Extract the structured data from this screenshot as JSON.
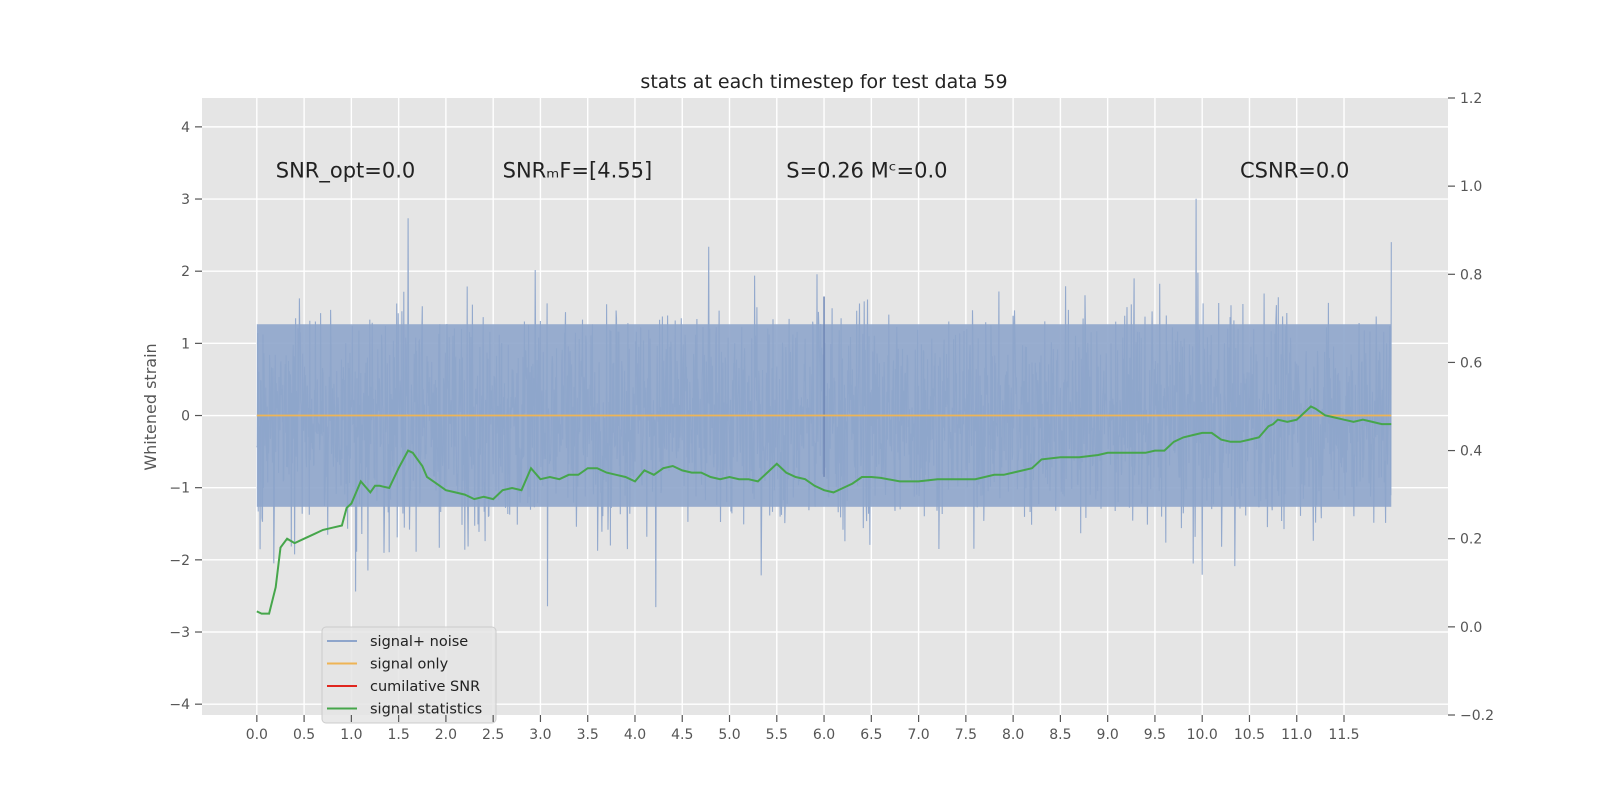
{
  "chart_data": {
    "type": "line",
    "title": "stats at each timestep for test data 59",
    "xlabel": "",
    "ylabel": "Whitened strain",
    "y2label": "",
    "xlim": [
      -0.58,
      12.6
    ],
    "ylim": [
      -4.15,
      4.4
    ],
    "y2lim": [
      -0.2,
      1.2
    ],
    "xticks": [
      "0.0",
      "0.5",
      "1.0",
      "1.5",
      "2.0",
      "2.5",
      "3.0",
      "3.5",
      "4.0",
      "4.5",
      "5.0",
      "5.5",
      "6.0",
      "6.5",
      "7.0",
      "7.5",
      "8.0",
      "8.5",
      "9.0",
      "9.5",
      "10.0",
      "10.5",
      "11.0",
      "11.5"
    ],
    "yticks": [
      "4",
      "3",
      "2",
      "1",
      "0",
      "−1",
      "−2",
      "−3",
      "−4"
    ],
    "y2ticks": [
      "1.2",
      "1.0",
      "0.8",
      "0.6",
      "0.4",
      "0.2",
      "0.0",
      "−0.2"
    ],
    "grid": true,
    "legend_position": "lower-left",
    "colors": {
      "background": "#e5e5e5",
      "noise": "#8ea5cb",
      "signal": "#eeb455",
      "cumulative": "#e0261e",
      "statistics": "#46a64b",
      "grid": "#ffffff"
    },
    "annotations": [
      {
        "id": "snr-opt",
        "text": "SNR_opt=0.0",
        "x": 0.2,
        "y": 3.3
      },
      {
        "id": "snr-mf",
        "text": "SNRₘF=[4.55]",
        "x": 2.6,
        "y": 3.3
      },
      {
        "id": "s-mc",
        "text": "S=0.26   Mᶜ=0.0",
        "x": 5.6,
        "y": 3.3
      },
      {
        "id": "csnr",
        "text": "CSNR=0.0",
        "x": 10.4,
        "y": 3.3
      }
    ],
    "series": [
      {
        "name": "signal+ noise",
        "axis": "left",
        "x_range": [
          0.0,
          12.0
        ],
        "envelope_upper_approx": 2.3,
        "envelope_lower_approx": -2.3,
        "spike_at": 6.0,
        "spike_range": [
          -0.85,
          1.65
        ]
      },
      {
        "name": "signal only",
        "axis": "left",
        "x": [
          0.0,
          12.0
        ],
        "values": [
          0.0,
          0.0
        ]
      },
      {
        "name": "cumilative SNR",
        "axis": "right",
        "x": [],
        "values": []
      },
      {
        "name": "signal statistics",
        "axis": "right",
        "x": [
          0.0,
          0.05,
          0.13,
          0.2,
          0.25,
          0.32,
          0.4,
          0.5,
          0.6,
          0.7,
          0.8,
          0.9,
          0.95,
          1.0,
          1.1,
          1.2,
          1.25,
          1.3,
          1.4,
          1.5,
          1.6,
          1.65,
          1.7,
          1.75,
          1.8,
          1.9,
          2.0,
          2.1,
          2.2,
          2.3,
          2.4,
          2.5,
          2.6,
          2.7,
          2.8,
          2.9,
          3.0,
          3.1,
          3.2,
          3.3,
          3.4,
          3.5,
          3.6,
          3.7,
          3.8,
          3.9,
          4.0,
          4.1,
          4.2,
          4.3,
          4.4,
          4.5,
          4.6,
          4.7,
          4.8,
          4.9,
          5.0,
          5.1,
          5.2,
          5.3,
          5.4,
          5.5,
          5.6,
          5.7,
          5.8,
          5.9,
          6.0,
          6.1,
          6.2,
          6.3,
          6.4,
          6.5,
          6.6,
          6.8,
          7.0,
          7.2,
          7.4,
          7.6,
          7.8,
          7.9,
          8.0,
          8.2,
          8.3,
          8.5,
          8.7,
          8.9,
          9.0,
          9.2,
          9.4,
          9.5,
          9.6,
          9.7,
          9.8,
          9.9,
          10.0,
          10.1,
          10.2,
          10.3,
          10.4,
          10.5,
          10.6,
          10.7,
          10.75,
          10.8,
          10.9,
          11.0,
          11.1,
          11.15,
          11.2,
          11.3,
          11.4,
          11.5,
          11.6,
          11.7,
          11.8,
          11.9,
          12.0
        ],
        "values": [
          0.035,
          0.03,
          0.03,
          0.09,
          0.18,
          0.2,
          0.19,
          0.2,
          0.21,
          0.22,
          0.225,
          0.23,
          0.27,
          0.28,
          0.33,
          0.305,
          0.32,
          0.32,
          0.315,
          0.36,
          0.4,
          0.395,
          0.38,
          0.365,
          0.34,
          0.325,
          0.31,
          0.305,
          0.3,
          0.29,
          0.295,
          0.29,
          0.31,
          0.315,
          0.31,
          0.36,
          0.335,
          0.34,
          0.335,
          0.345,
          0.345,
          0.36,
          0.36,
          0.35,
          0.345,
          0.34,
          0.33,
          0.355,
          0.345,
          0.36,
          0.365,
          0.355,
          0.35,
          0.35,
          0.34,
          0.335,
          0.34,
          0.335,
          0.335,
          0.33,
          0.35,
          0.37,
          0.35,
          0.34,
          0.335,
          0.32,
          0.31,
          0.305,
          0.315,
          0.325,
          0.34,
          0.34,
          0.338,
          0.33,
          0.33,
          0.335,
          0.335,
          0.335,
          0.345,
          0.345,
          0.35,
          0.36,
          0.38,
          0.385,
          0.385,
          0.39,
          0.395,
          0.395,
          0.395,
          0.4,
          0.4,
          0.42,
          0.43,
          0.435,
          0.44,
          0.44,
          0.425,
          0.42,
          0.42,
          0.425,
          0.43,
          0.455,
          0.46,
          0.47,
          0.465,
          0.47,
          0.49,
          0.5,
          0.495,
          0.48,
          0.475,
          0.47,
          0.465,
          0.47,
          0.465,
          0.46,
          0.46
        ]
      }
    ]
  }
}
